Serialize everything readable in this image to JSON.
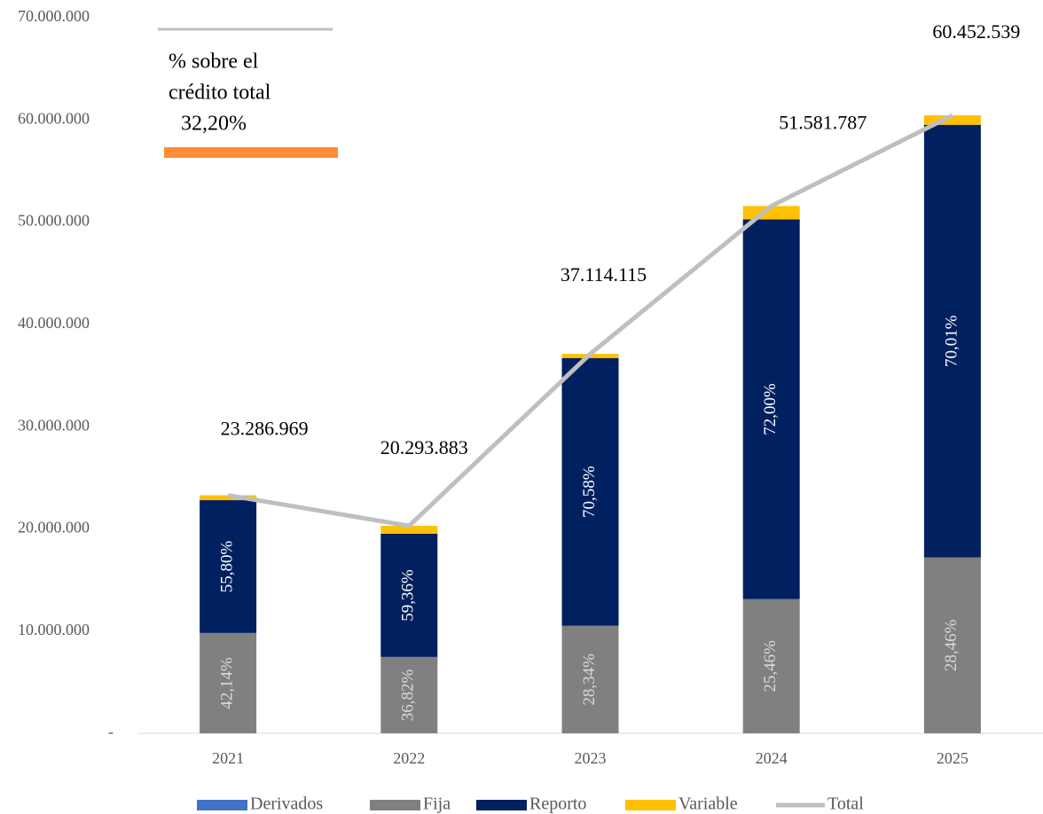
{
  "chart_data": {
    "type": "stacked_bar_line",
    "annotation": [
      "% sobre el",
      "crédito total",
      "32,20%"
    ],
    "categories": [
      "2021",
      "2022",
      "2023",
      "2024",
      "2025"
    ],
    "series": [
      {
        "name": "Derivados",
        "color": "#4472c4",
        "values": [
          0,
          0,
          0,
          0,
          0
        ]
      },
      {
        "name": "Fija",
        "color": "#808080",
        "values": [
          9813129,
          7472208,
          10518140,
          13132723,
          17204792
        ],
        "share_labels": [
          "42,14%",
          "36,82%",
          "28,34%",
          "25,46%",
          "28,46%"
        ]
      },
      {
        "name": "Reporto",
        "color": "#002060",
        "values": [
          12994128,
          12046449,
          26195143,
          37138887,
          42322822
        ],
        "share_labels": [
          "55,80%",
          "59,36%",
          "70,58%",
          "72,00%",
          "70,01%"
        ]
      },
      {
        "name": "Variable",
        "color": "#ffc000",
        "values": [
          479712,
          775226,
          400832,
          1310177,
          924925
        ]
      },
      {
        "name": "Total",
        "color": "#bfbfbf",
        "type": "line",
        "values": [
          23286969,
          20293883,
          37114115,
          51581787,
          60452539
        ],
        "value_labels": [
          "23.286.969",
          "20.293.883",
          "37.114.115",
          "51.581.787",
          "60.452.539"
        ]
      }
    ],
    "ylim": [
      0,
      70000000
    ],
    "yticks": [
      {
        "value": 0,
        "label": "-"
      },
      {
        "value": 10000000,
        "label": "10.000.000"
      },
      {
        "value": 20000000,
        "label": "20.000.000"
      },
      {
        "value": 30000000,
        "label": "30.000.000"
      },
      {
        "value": 40000000,
        "label": "40.000.000"
      },
      {
        "value": 50000000,
        "label": "50.000.000"
      },
      {
        "value": 60000000,
        "label": "60.000.000"
      },
      {
        "value": 70000000,
        "label": "70.000.000"
      }
    ],
    "legend": "bottom"
  }
}
